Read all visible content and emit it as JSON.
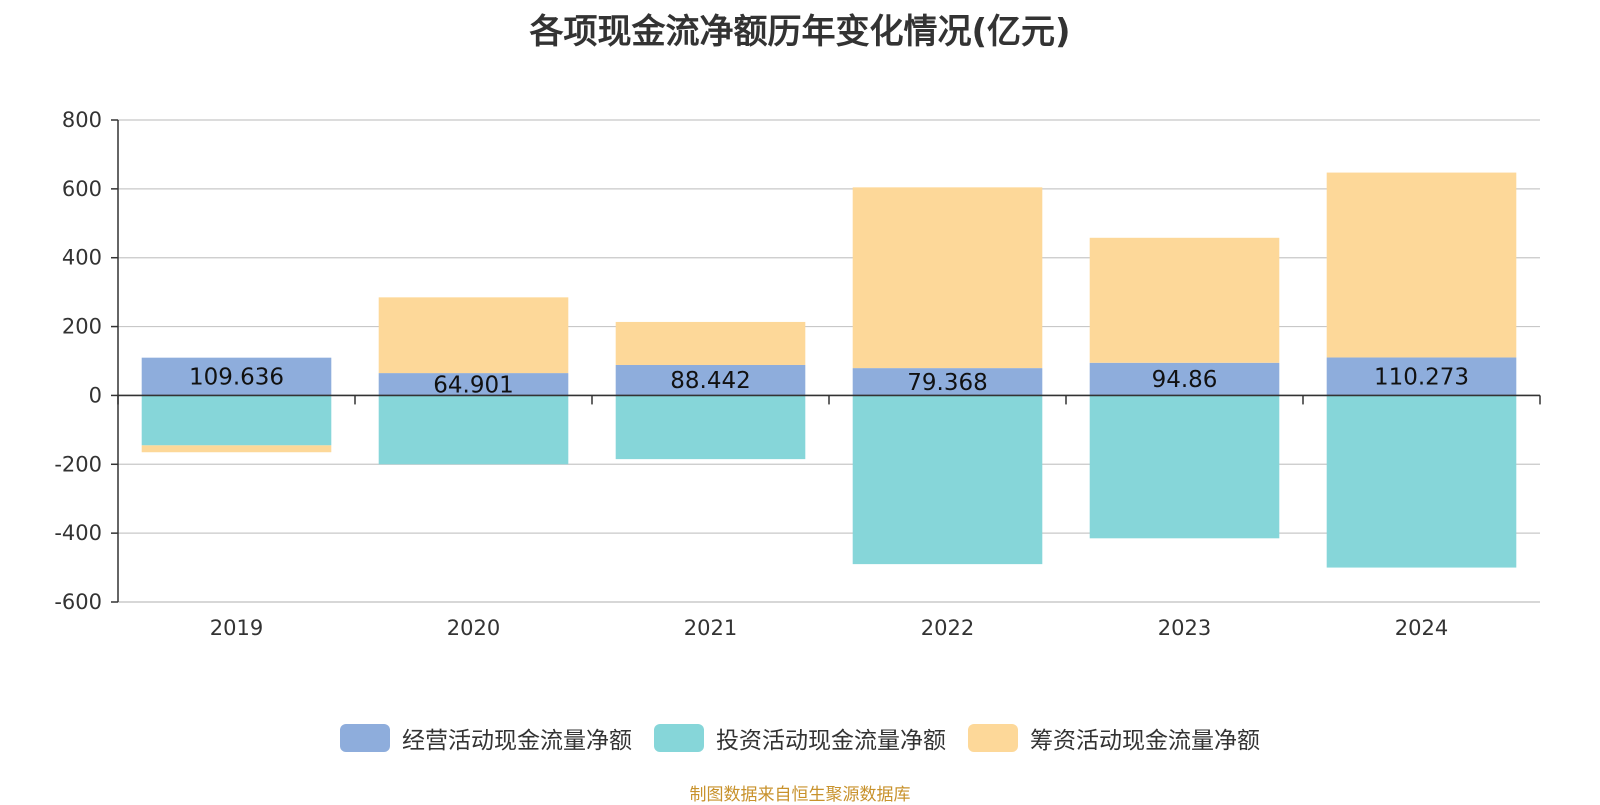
{
  "chart_data": {
    "type": "bar",
    "stacked": true,
    "title": "各项现金流净额历年变化情况(亿元)",
    "categories": [
      "2019",
      "2020",
      "2021",
      "2022",
      "2023",
      "2024"
    ],
    "series": [
      {
        "name": "经营活动现金流量净额",
        "values": [
          109.636,
          64.901,
          88.442,
          79.368,
          94.86,
          110.273
        ],
        "color": "#8eaddc",
        "labels": [
          "109.636",
          "64.901",
          "88.442",
          "79.368",
          "94.86",
          "110.273"
        ]
      },
      {
        "name": "投资活动现金流量净额",
        "values": [
          -145,
          -200,
          -185,
          -490,
          -415,
          -500
        ],
        "color": "#86d6d9"
      },
      {
        "name": "筹资活动现金流量净额",
        "values": [
          -20,
          220,
          125,
          525,
          363,
          537
        ],
        "color": "#fdd899"
      }
    ],
    "ylim": [
      -600,
      800
    ],
    "yticks": [
      "800",
      "600",
      "400",
      "200",
      "0",
      "-200",
      "-400",
      "-600"
    ],
    "ytick_values": [
      800,
      600,
      400,
      200,
      0,
      -200,
      -400,
      -600
    ],
    "grid": true,
    "legend_position": "bottom",
    "xlabel": "",
    "ylabel": ""
  },
  "footer": {
    "source": "制图数据来自恒生聚源数据库"
  }
}
